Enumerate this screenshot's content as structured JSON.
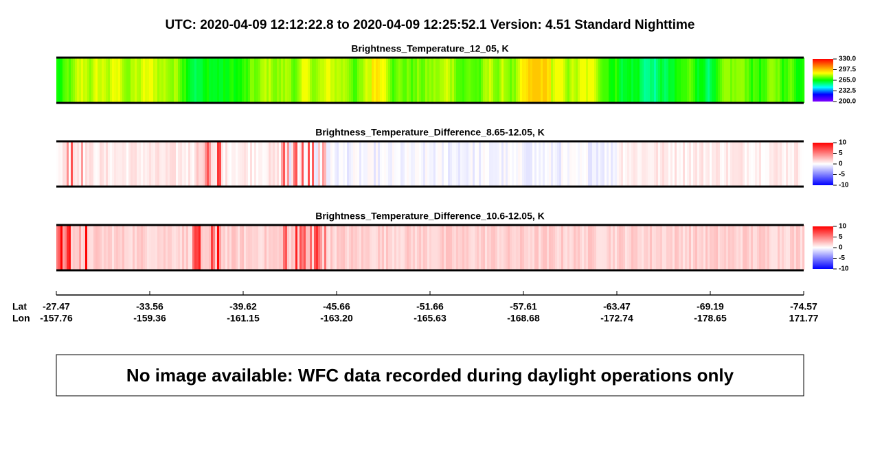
{
  "title": "UTC:  2020-04-09   12:12:22.8  to  2020-04-09   12:25:52.1    Version: 4.51  Standard Nighttime",
  "chart_data": [
    {
      "type": "image",
      "title": "Brightness_Temperature_12_05, K",
      "colorbar": {
        "lim": [
          200,
          330
        ],
        "colors": [
          "#8000ff",
          "#0000ff",
          "#00ffff",
          "#00ff00",
          "#ffff00",
          "#ff8000",
          "#ff0000"
        ],
        "ticks": [
          {
            "value": 330,
            "label": "330.0"
          },
          {
            "value": 297.5,
            "label": "297.5"
          },
          {
            "value": 265,
            "label": "265.0"
          },
          {
            "value": 232.5,
            "label": "232.5"
          },
          {
            "value": 200,
            "label": "200.0"
          }
        ]
      }
    },
    {
      "type": "image",
      "title": "Brightness_Temperature_Difference_8.65-12.05, K",
      "colorbar": {
        "lim": [
          -10,
          10
        ],
        "colors": [
          "#0000ff",
          "#ffffff",
          "#ff0000"
        ],
        "ticks": [
          10,
          5,
          0,
          -5,
          -10
        ]
      }
    },
    {
      "type": "image",
      "title": "Brightness_Temperature_Difference_10.6-12.05, K",
      "colorbar": {
        "lim": [
          -10,
          10
        ],
        "colors": [
          "#0000ff",
          "#ffffff",
          "#ff0000"
        ],
        "ticks": [
          10,
          5,
          0,
          -5,
          -10
        ]
      }
    }
  ],
  "x_axis": {
    "row_labels": [
      "Lat",
      "Lon"
    ],
    "ticks": [
      {
        "lat": "-27.47",
        "lon": "-157.76"
      },
      {
        "lat": "-33.56",
        "lon": "-159.36"
      },
      {
        "lat": "-39.62",
        "lon": "-161.15"
      },
      {
        "lat": "-45.66",
        "lon": "-163.20"
      },
      {
        "lat": "-51.66",
        "lon": "-165.63"
      },
      {
        "lat": "-57.61",
        "lon": "-168.68"
      },
      {
        "lat": "-63.47",
        "lon": "-172.74"
      },
      {
        "lat": "-69.19",
        "lon": "-178.65"
      },
      {
        "lat": "-74.57",
        "lon": "171.77"
      }
    ]
  },
  "note": "No image available: WFC data recorded during daylight operations only"
}
